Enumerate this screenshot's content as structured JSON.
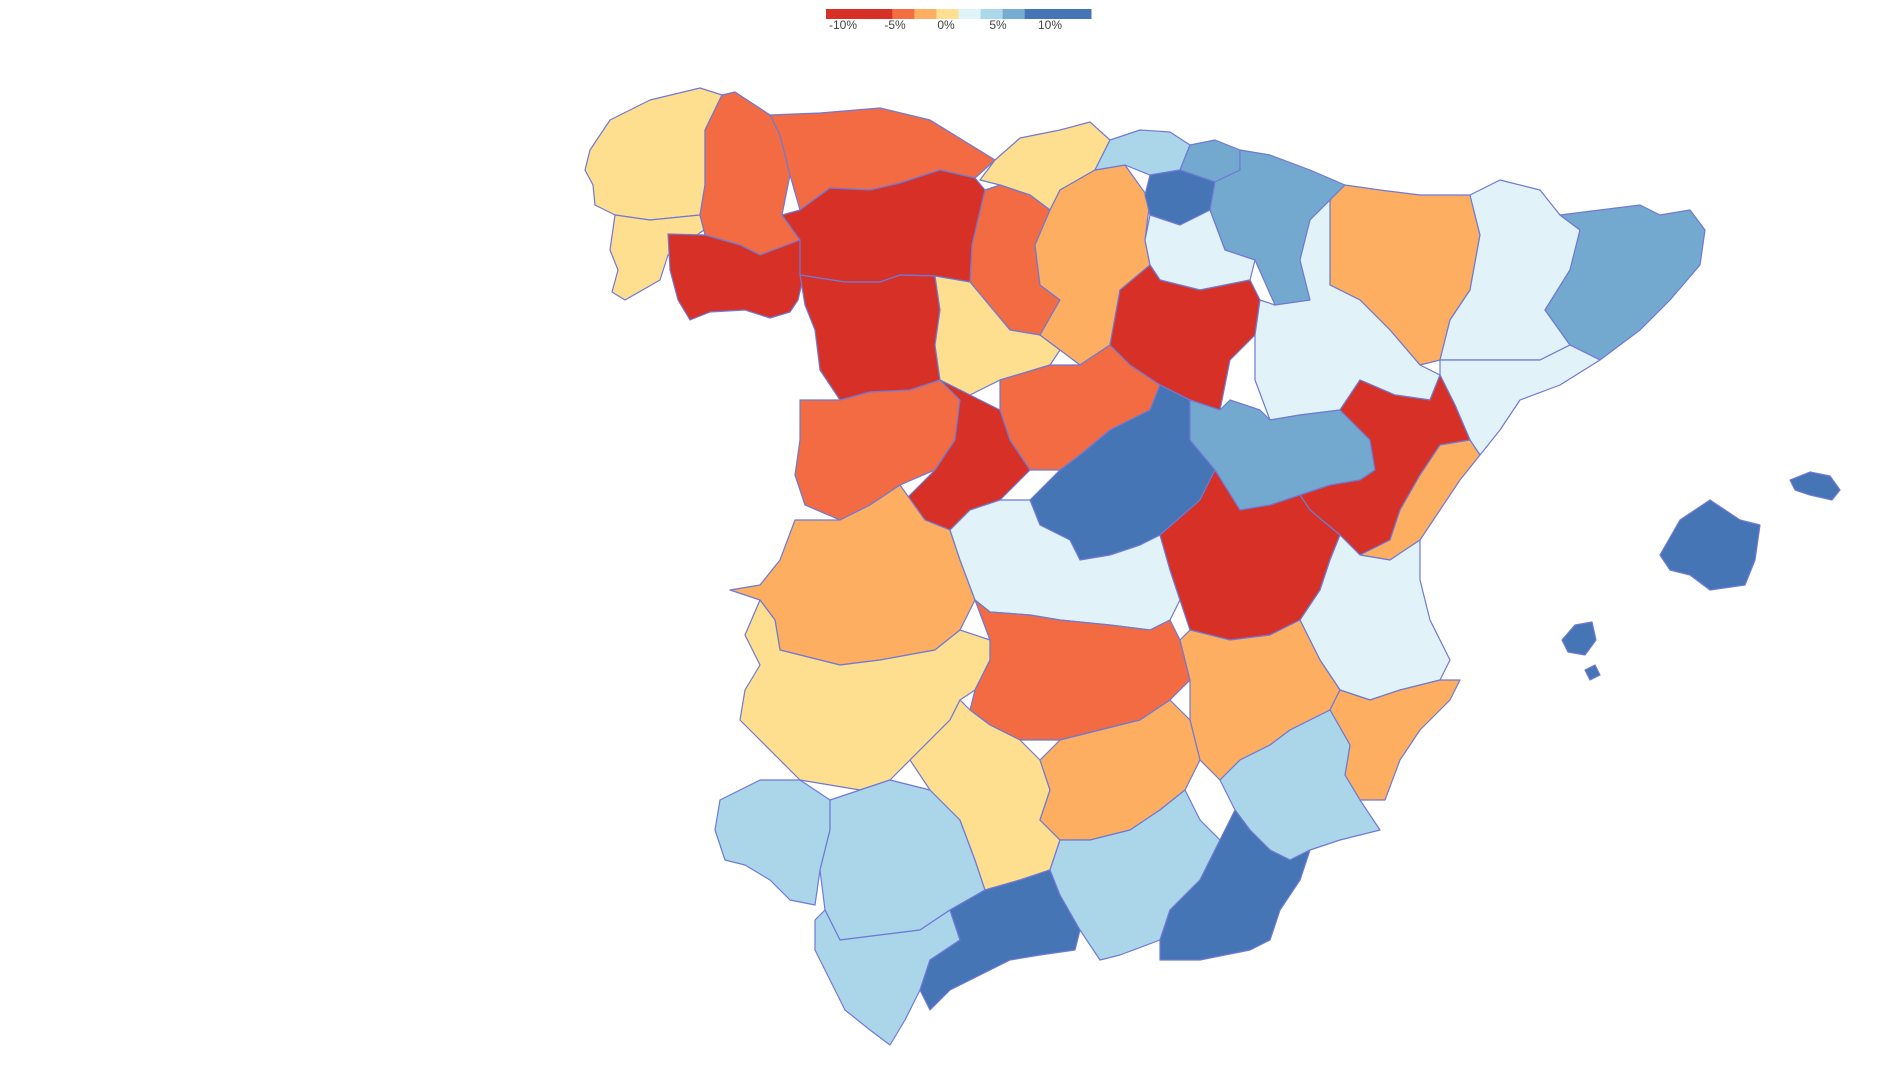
{
  "legend": {
    "colors": [
      "#d73027",
      "#d73027",
      "#d73027",
      "#f46d43",
      "#fdae61",
      "#fee090",
      "#e0f3f8",
      "#abd9e9",
      "#74add1",
      "#4575b4",
      "#4575b4",
      "#4575b4"
    ],
    "ticks": [
      "-10%",
      "-5%",
      "0%",
      "5%",
      "10%"
    ]
  },
  "colors": {
    "d_red": "#d73027",
    "d_orange": "#f26b43",
    "d_lorange": "#fdae61",
    "d_yellow": "#fedf8f",
    "d_pale": "#e1f3f8",
    "d_lblue": "#abd6ea",
    "d_mblue": "#74a9cf",
    "d_blue": "#4575b4",
    "border": "#6f79d6"
  },
  "provinces": [
    {
      "id": "a-coruna",
      "cls": "d_yellow"
    },
    {
      "id": "pontevedra",
      "cls": "d_yellow"
    },
    {
      "id": "lugo",
      "cls": "d_orange"
    },
    {
      "id": "ourense",
      "cls": "d_red"
    },
    {
      "id": "asturias",
      "cls": "d_orange"
    },
    {
      "id": "cantabria",
      "cls": "d_yellow"
    },
    {
      "id": "leon",
      "cls": "d_red"
    },
    {
      "id": "zamora",
      "cls": "d_red"
    },
    {
      "id": "palencia",
      "cls": "d_orange"
    },
    {
      "id": "valladolid",
      "cls": "d_yellow"
    },
    {
      "id": "burgos",
      "cls": "d_lorange"
    },
    {
      "id": "bizkaia",
      "cls": "d_lblue"
    },
    {
      "id": "gipuzkoa",
      "cls": "d_mblue"
    },
    {
      "id": "alava",
      "cls": "d_blue"
    },
    {
      "id": "navarra",
      "cls": "d_mblue"
    },
    {
      "id": "la-rioja",
      "cls": "d_pale"
    },
    {
      "id": "soria",
      "cls": "d_red"
    },
    {
      "id": "huesca",
      "cls": "d_lorange"
    },
    {
      "id": "zaragoza",
      "cls": "d_pale"
    },
    {
      "id": "lleida",
      "cls": "d_pale"
    },
    {
      "id": "girona-barcelona",
      "cls": "d_mblue"
    },
    {
      "id": "tarragona",
      "cls": "d_pale"
    },
    {
      "id": "salamanca",
      "cls": "d_orange"
    },
    {
      "id": "avila",
      "cls": "d_red"
    },
    {
      "id": "segovia",
      "cls": "d_orange"
    },
    {
      "id": "madrid",
      "cls": "d_blue"
    },
    {
      "id": "guadalajara",
      "cls": "d_mblue"
    },
    {
      "id": "teruel",
      "cls": "d_red"
    },
    {
      "id": "castellon",
      "cls": "d_lorange"
    },
    {
      "id": "caceres",
      "cls": "d_lorange"
    },
    {
      "id": "toledo",
      "cls": "d_pale"
    },
    {
      "id": "cuenca",
      "cls": "d_red"
    },
    {
      "id": "valencia",
      "cls": "d_pale"
    },
    {
      "id": "badajoz",
      "cls": "d_yellow"
    },
    {
      "id": "ciudad-real",
      "cls": "d_orange"
    },
    {
      "id": "albacete",
      "cls": "d_lorange"
    },
    {
      "id": "alicante",
      "cls": "d_lorange"
    },
    {
      "id": "huelva",
      "cls": "d_lblue"
    },
    {
      "id": "sevilla",
      "cls": "d_lblue"
    },
    {
      "id": "cordoba",
      "cls": "d_yellow"
    },
    {
      "id": "jaen",
      "cls": "d_lorange"
    },
    {
      "id": "murcia",
      "cls": "d_lblue"
    },
    {
      "id": "cadiz",
      "cls": "d_lblue"
    },
    {
      "id": "malaga",
      "cls": "d_blue"
    },
    {
      "id": "granada",
      "cls": "d_lblue"
    },
    {
      "id": "almeria",
      "cls": "d_blue"
    },
    {
      "id": "mallorca",
      "cls": "d_blue"
    },
    {
      "id": "menorca",
      "cls": "d_blue"
    },
    {
      "id": "ibiza",
      "cls": "d_blue"
    },
    {
      "id": "formentera",
      "cls": "d_blue"
    }
  ]
}
